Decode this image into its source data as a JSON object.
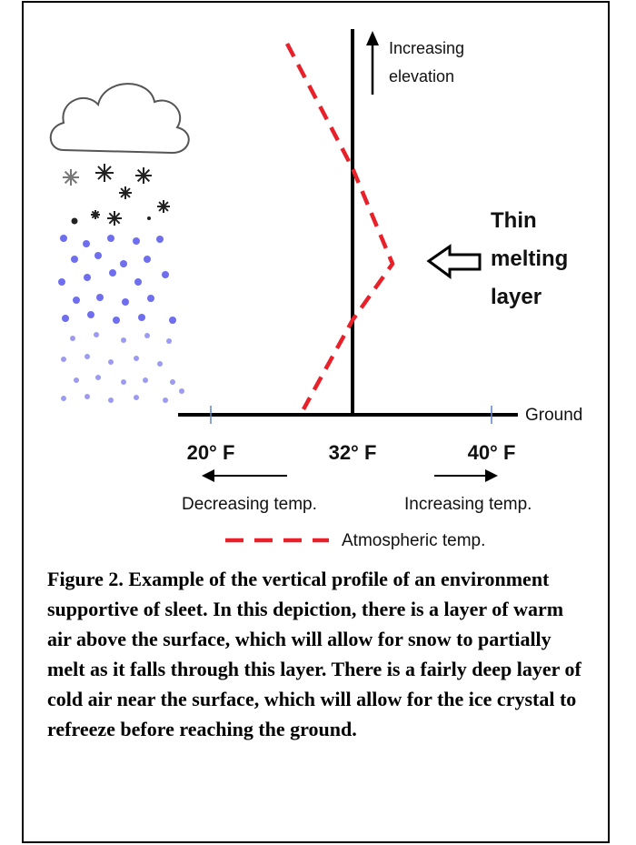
{
  "diagram": {
    "elevation_label_line1": "Increasing",
    "elevation_label_line2": "elevation",
    "melt_label_line1": "Thin",
    "melt_label_line2": "melting",
    "melt_label_line3": "layer",
    "ground_label": "Ground",
    "ticks": [
      "20° F",
      "32° F",
      "40° F"
    ],
    "decreasing_label": "Decreasing temp.",
    "increasing_label": "Increasing temp.",
    "legend_label": "Atmospheric temp.",
    "colors": {
      "temp_line": "#e8202a",
      "rain": "#6666ee",
      "snow": "#222222",
      "axis": "#000000",
      "tick": "#5b86c4"
    }
  },
  "caption": "Figure 2. Example of the vertical profile of an environment supportive of sleet.  In this depiction, there is a layer of warm air above the surface, which will allow for snow to partially melt as it falls through this layer.  There is a fairly deep layer of cold air near the surface, which will allow for the ice crystal to refreeze before reaching the ground."
}
